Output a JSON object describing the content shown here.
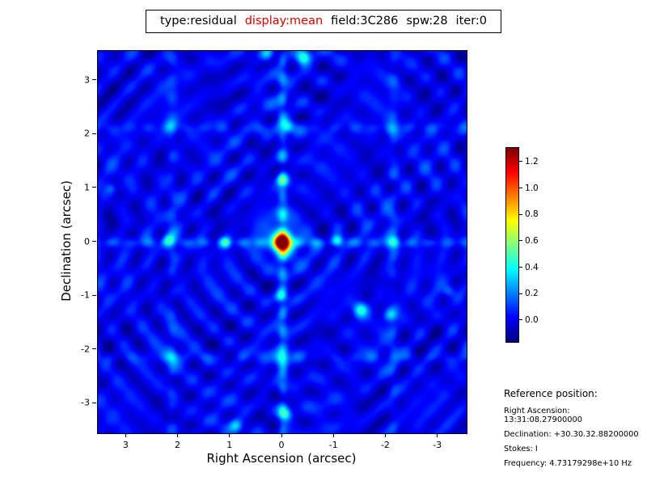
{
  "title": {
    "parts": [
      {
        "text": "type:residual",
        "color": "#000000"
      },
      {
        "text": "display:mean",
        "color": "#d40000"
      },
      {
        "text": "field:3C286",
        "color": "#000000"
      },
      {
        "text": "spw:28",
        "color": "#000000"
      },
      {
        "text": "iter:0",
        "color": "#000000"
      }
    ]
  },
  "axes": {
    "x": {
      "label": "Right Ascension (arcsec)",
      "ticks": [
        "3",
        "2",
        "1",
        "0",
        "-1",
        "-2",
        "-3"
      ]
    },
    "y": {
      "label": "Declination (arcsec)",
      "ticks": [
        "3",
        "2",
        "1",
        "0",
        "-1",
        "-2",
        "-3"
      ]
    }
  },
  "colorbar": {
    "ticks": [
      "1.2",
      "1.0",
      "0.8",
      "0.6",
      "0.4",
      "0.2",
      "0.0"
    ]
  },
  "reference": {
    "heading": "Reference position:",
    "lines": [
      "Right Ascension: 13:31:08.27900000",
      "Declination: +30.30.32.88200000",
      "Stokes: I",
      "Frequency: 4.73179298e+10 Hz"
    ]
  },
  "chart_data": {
    "type": "heatmap",
    "title": "type:residual display:mean field:3C286 spw:28 iter:0",
    "image_type": "residual",
    "display": "mean",
    "field": "3C286",
    "spw": 28,
    "iter": 0,
    "xlabel": "Right Ascension (arcsec)",
    "ylabel": "Declination (arcsec)",
    "x_ticks": [
      3,
      2,
      1,
      0,
      -1,
      -2,
      -3
    ],
    "y_ticks": [
      -3,
      -2,
      -1,
      0,
      1,
      2,
      3
    ],
    "xlim": [
      3.55,
      -3.55
    ],
    "ylim": [
      -3.55,
      3.55
    ],
    "colormap": "jet",
    "colorbar_ticks": [
      0.0,
      0.2,
      0.4,
      0.6,
      0.8,
      1.0,
      1.2
    ],
    "value_range": [
      -0.16,
      1.31
    ],
    "peak": {
      "x": 0.0,
      "y": 0.0,
      "value": 1.3
    },
    "reference_position": {
      "right_ascension": "13:31:08.27900000",
      "declination": "+30.30.32.88200000",
      "stokes": "I",
      "frequency": "4.73179298e+10 Hz"
    },
    "description": "Interferometric residual image: dark blue background with cyan sidelobe cross through a compact bright source at (0,0); red/yellow peak at center; faint ripple texture and secondary sidelobe grid near ±2.1 arcsec."
  }
}
